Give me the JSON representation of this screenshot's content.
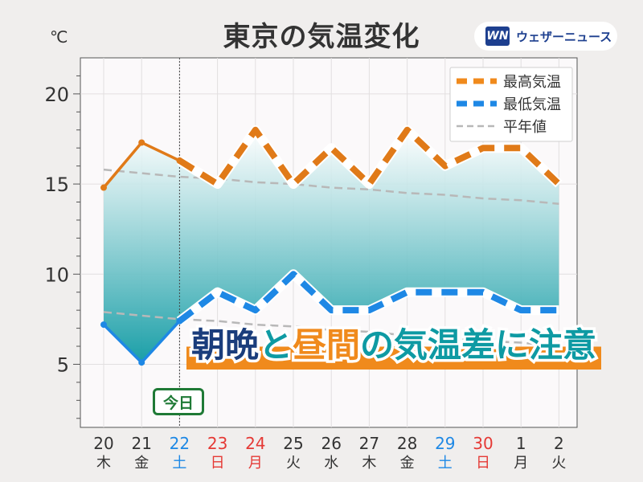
{
  "header": {
    "title": "東京の気温変化",
    "unit": "℃",
    "brand_logo": "WN",
    "brand_name": "ウェザーニュース"
  },
  "headline": {
    "part1": "朝晩",
    "part2": "と",
    "part3": "昼間",
    "part4": "の気温差に注意"
  },
  "today_label": "今日",
  "colors": {
    "max": "#f08a1c",
    "min": "#1e88e5",
    "normal": "#b8b8b8",
    "band_top": "#ffffff",
    "band_bottom": "#0e9aa3",
    "saturday": "#1e88e5",
    "holiday": "#e53935",
    "weekday": "#333333"
  },
  "chart_data": {
    "type": "line",
    "title": "東京の気温変化",
    "ylabel": "℃",
    "ylim": [
      1.5,
      22
    ],
    "yticks": [
      5,
      10,
      15,
      20
    ],
    "grid": true,
    "legend_position": "top-right",
    "categories": [
      "20",
      "21",
      "22",
      "23",
      "24",
      "25",
      "26",
      "27",
      "28",
      "29",
      "30",
      "1",
      "2"
    ],
    "weekdays": [
      "木",
      "金",
      "土",
      "日",
      "月",
      "火",
      "水",
      "木",
      "金",
      "土",
      "日",
      "月",
      "火"
    ],
    "day_types": [
      "weekday",
      "weekday",
      "saturday",
      "holiday",
      "holiday",
      "weekday",
      "weekday",
      "weekday",
      "weekday",
      "saturday",
      "holiday",
      "weekday",
      "weekday"
    ],
    "today_index": 2,
    "series": [
      {
        "name": "最高気温",
        "values": [
          14.8,
          17.3,
          16.3,
          15.0,
          18.0,
          15.0,
          17.0,
          15.0,
          18.0,
          16.0,
          17.0,
          17.0,
          15.0
        ]
      },
      {
        "name": "最低気温",
        "values": [
          7.2,
          5.1,
          7.4,
          9.0,
          8.0,
          10.0,
          8.0,
          8.0,
          9.0,
          9.0,
          9.0,
          8.0,
          8.0
        ]
      },
      {
        "name": "平年値",
        "values": [
          15.8,
          15.6,
          15.4,
          15.3,
          15.1,
          15.0,
          14.8,
          14.7,
          14.5,
          14.4,
          14.2,
          14.1,
          13.9
        ]
      },
      {
        "name": "",
        "values": [
          7.9,
          7.7,
          7.5,
          7.4,
          7.2,
          7.1,
          6.9,
          6.8,
          6.6,
          6.5,
          6.3,
          6.2,
          6.0
        ]
      }
    ]
  }
}
